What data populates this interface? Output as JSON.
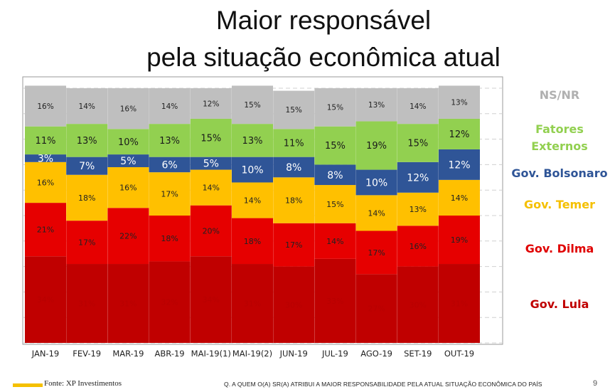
{
  "title": {
    "line1": "Maior responsável",
    "line2": "pela situação econômica atual"
  },
  "colors": {
    "ns_nr": "#bfbfbf",
    "fatores_externos": "#92d050",
    "gov_bolsonaro": "#2f5597",
    "gov_temer": "#ffc000",
    "gov_dilma": "#e60000",
    "gov_lula": "#c00000"
  },
  "legend": [
    {
      "label": "NS/NR",
      "color": "#b0b0b0"
    },
    {
      "label": "Fatores Externos",
      "color": "#92d050"
    },
    {
      "label": "Gov. Bolsonaro",
      "color": "#2f5597"
    },
    {
      "label": "Gov. Temer",
      "color": "#f5c000"
    },
    {
      "label": "Gov. Dilma",
      "color": "#e00000"
    },
    {
      "label": "Gov. Lula",
      "color": "#c00000"
    }
  ],
  "chart_data": {
    "type": "bar",
    "stacked": true,
    "orientation": "vertical",
    "categories": [
      "JAN-19",
      "FEV-19",
      "MAR-19",
      "ABR-19",
      "MAI-19(1)",
      "MAI-19(2)",
      "JUN-19",
      "JUL-19",
      "AGO-19",
      "SET-19",
      "OUT-19"
    ],
    "series": [
      {
        "name": "Gov. Lula",
        "values": [
          34,
          31,
          31,
          32,
          34,
          31,
          30,
          33,
          27,
          30,
          31
        ]
      },
      {
        "name": "Gov. Dilma",
        "values": [
          21,
          17,
          22,
          18,
          20,
          18,
          17,
          14,
          17,
          16,
          19
        ]
      },
      {
        "name": "Gov. Temer",
        "values": [
          16,
          18,
          16,
          17,
          14,
          14,
          18,
          15,
          14,
          13,
          14
        ]
      },
      {
        "name": "Gov. Bolsonaro",
        "values": [
          3,
          7,
          5,
          6,
          5,
          10,
          8,
          8,
          10,
          12,
          12
        ]
      },
      {
        "name": "Fatores Externos",
        "values": [
          11,
          13,
          10,
          13,
          15,
          13,
          11,
          15,
          19,
          15,
          12
        ]
      },
      {
        "name": "NS/NR",
        "values": [
          16,
          14,
          16,
          14,
          12,
          15,
          15,
          15,
          13,
          14,
          13
        ]
      }
    ],
    "value_labels_suffix": "%",
    "ylim": [
      0,
      100
    ],
    "grid": true,
    "legend_position": "right"
  },
  "footer": {
    "source": "Fonte: XP Investimentos",
    "question": "Q. A QUEM O(A) SR(A) ATRIBUI A MAIOR RESPONSABILIDADE PELA ATUAL  SITUAÇÃO ECONÔMICA DO PAÍS",
    "page_number": "9"
  }
}
